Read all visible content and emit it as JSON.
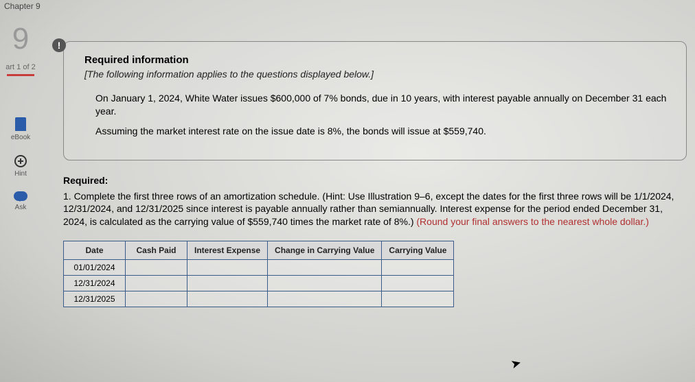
{
  "topbar": {
    "chapter": "Chapter 9"
  },
  "sidebar": {
    "question_number": "9",
    "part_label": "art 1 of 2",
    "items": [
      {
        "label": "eBook"
      },
      {
        "label": "Hint"
      },
      {
        "label": "Ask"
      }
    ]
  },
  "info": {
    "heading": "Required information",
    "subtitle": "[The following information applies to the questions displayed below.]",
    "para1": "On January 1, 2024, White Water issues $600,000 of 7% bonds, due in 10 years, with interest payable annually on December 31 each year.",
    "para2": "Assuming the market interest rate on the issue date is 8%, the bonds will issue at $559,740."
  },
  "required": {
    "title": "Required:",
    "text_plain": "1. Complete the first three rows of an amortization schedule. (Hint: Use Illustration 9–6, except the dates for the first three rows will be 1/1/2024, 12/31/2024, and 12/31/2025 since interest is payable annually rather than semiannually. Interest expense for the period ended December 31, 2024, is calculated as the carrying value of $559,740 times the market rate of 8%.) ",
    "red_tail": "(Round your final answers to the nearest whole dollar.)"
  },
  "table": {
    "headers": [
      "Date",
      "Cash Paid",
      "Interest Expense",
      "Change in Carrying Value",
      "Carrying Value"
    ],
    "col_widths": [
      "90px",
      "90px",
      "110px",
      "130px",
      "110px"
    ],
    "header_bg": "#d9d9d9",
    "border_color": "#3a5a8a",
    "rows": [
      {
        "date": "01/01/2024",
        "cash": "",
        "interest": "",
        "change": "",
        "carrying": ""
      },
      {
        "date": "12/31/2024",
        "cash": "",
        "interest": "",
        "change": "",
        "carrying": ""
      },
      {
        "date": "12/31/2025",
        "cash": "",
        "interest": "",
        "change": "",
        "carrying": ""
      }
    ]
  }
}
